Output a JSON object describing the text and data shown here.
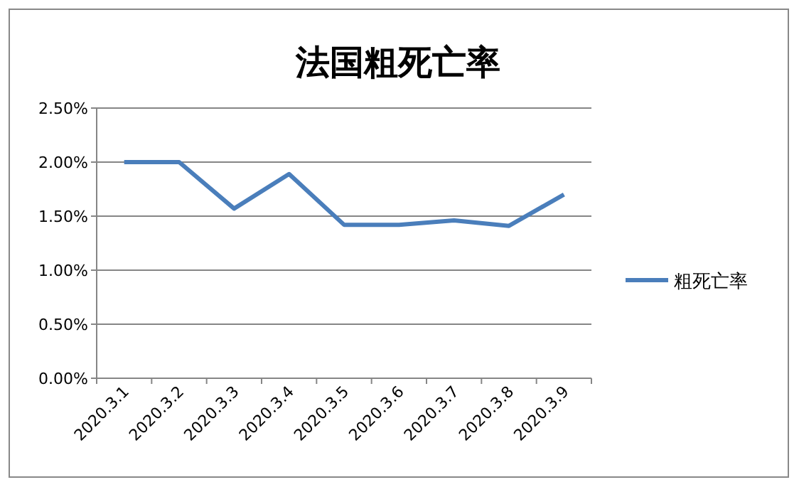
{
  "chart_data": {
    "type": "line",
    "title": "法国粗死亡率",
    "categories": [
      "2020.3.1",
      "2020.3.2",
      "2020.3.3",
      "2020.3.4",
      "2020.3.5",
      "2020.3.6",
      "2020.3.7",
      "2020.3.8",
      "2020.3.9"
    ],
    "series": [
      {
        "name": "粗死亡率",
        "color": "#4a7ebb",
        "values": [
          2.0,
          2.0,
          1.57,
          1.89,
          1.42,
          1.42,
          1.46,
          1.41,
          1.7
        ]
      }
    ],
    "ylim": [
      0,
      2.5
    ],
    "yticks": [
      {
        "value": 0,
        "label": "0.00%"
      },
      {
        "value": 0.5,
        "label": "0.50%"
      },
      {
        "value": 1,
        "label": "1.00%"
      },
      {
        "value": 1.5,
        "label": "1.50%"
      },
      {
        "value": 2,
        "label": "2.00%"
      },
      {
        "value": 2.5,
        "label": "2.50%"
      }
    ],
    "grid": "y",
    "legend": "right",
    "marker": "none",
    "line_style": "solid"
  }
}
